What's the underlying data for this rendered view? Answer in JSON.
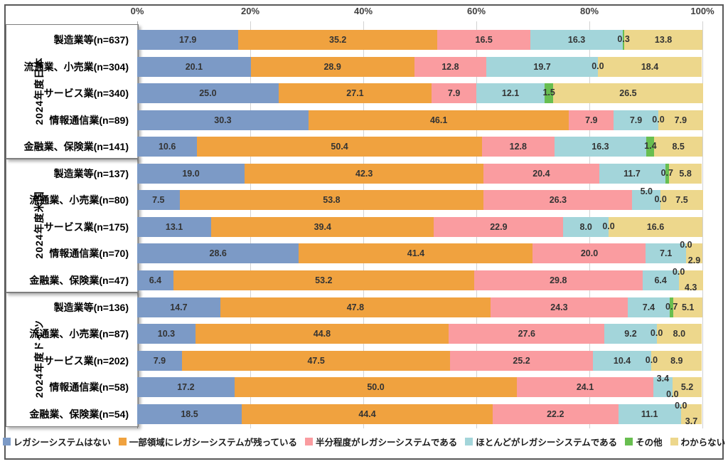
{
  "chart_data": {
    "type": "bar",
    "orientation": "horizontal-stacked",
    "title": "",
    "x_axis": {
      "ticks": [
        "0%",
        "20%",
        "40%",
        "60%",
        "80%",
        "100%"
      ],
      "min": 0,
      "max": 100,
      "position": "top",
      "grid": true
    },
    "value_label_decimals": 1,
    "series": [
      {
        "name": "レガシーシステムはない",
        "color": "#7c9ac6"
      },
      {
        "name": "一部領域にレガシーシステムが残っている",
        "color": "#f0a23f"
      },
      {
        "name": "半分程度がレガシーシステムである",
        "color": "#fa9ca0"
      },
      {
        "name": "ほとんどがレガシーシステムである",
        "color": "#a3d5da"
      },
      {
        "name": "その他",
        "color": "#68be50"
      },
      {
        "name": "わからない",
        "color": "#edd78c"
      }
    ],
    "legend_position": "bottom",
    "groups": [
      {
        "label": "2024年度日本",
        "rows": [
          {
            "label": "製造業等(n=637)",
            "values": [
              17.9,
              35.2,
              16.5,
              16.3,
              0.3,
              13.8
            ]
          },
          {
            "label": "流通業、小売業(n=304)",
            "values": [
              20.1,
              28.9,
              12.8,
              19.7,
              0.0,
              18.4
            ]
          },
          {
            "label": "サービス業(n=340)",
            "values": [
              25.0,
              27.1,
              7.9,
              12.1,
              1.5,
              26.5
            ]
          },
          {
            "label": "情報通信業(n=89)",
            "values": [
              30.3,
              46.1,
              7.9,
              7.9,
              0.0,
              7.9
            ]
          },
          {
            "label": "金融業、保険業(n=141)",
            "values": [
              10.6,
              50.4,
              12.8,
              16.3,
              1.4,
              8.5
            ]
          }
        ]
      },
      {
        "label": "2024年度米国",
        "rows": [
          {
            "label": "製造業等(n=137)",
            "values": [
              19.0,
              42.3,
              20.4,
              11.7,
              0.7,
              5.8
            ]
          },
          {
            "label": "流通業、小売業(n=80)",
            "values": [
              7.5,
              53.8,
              26.3,
              5.0,
              0.0,
              7.5
            ],
            "dy": [
              0,
              0,
              0,
              -1,
              0,
              0
            ]
          },
          {
            "label": "サービス業(n=175)",
            "values": [
              13.1,
              39.4,
              22.9,
              8.0,
              0.0,
              16.6
            ]
          },
          {
            "label": "情報通信業(n=70)",
            "values": [
              28.6,
              41.4,
              20.0,
              7.1,
              0.0,
              2.9
            ],
            "dy": [
              0,
              0,
              0,
              0,
              -1,
              1
            ]
          },
          {
            "label": "金融業、保険業(n=47)",
            "values": [
              6.4,
              53.2,
              29.8,
              6.4,
              0.0,
              4.3
            ],
            "dy": [
              0,
              0,
              0,
              0,
              -1,
              1
            ]
          }
        ]
      },
      {
        "label": "2024年度ドイツ",
        "rows": [
          {
            "label": "製造業等(n=136)",
            "values": [
              14.7,
              47.8,
              24.3,
              7.4,
              0.7,
              5.1
            ]
          },
          {
            "label": "流通業、小売業(n=87)",
            "values": [
              10.3,
              44.8,
              27.6,
              9.2,
              0.0,
              8.0
            ]
          },
          {
            "label": "サービス業(n=202)",
            "values": [
              7.9,
              47.5,
              25.2,
              10.4,
              0.0,
              8.9
            ]
          },
          {
            "label": "情報通信業(n=58)",
            "values": [
              17.2,
              50.0,
              24.1,
              3.4,
              0.0,
              5.2
            ],
            "dy": [
              0,
              0,
              0,
              -1,
              1,
              0
            ]
          },
          {
            "label": "金融業、保険業(n=54)",
            "values": [
              18.5,
              44.4,
              22.2,
              11.1,
              0.0,
              3.7
            ],
            "dy": [
              0,
              0,
              0,
              0,
              -1,
              1
            ]
          }
        ]
      }
    ]
  }
}
